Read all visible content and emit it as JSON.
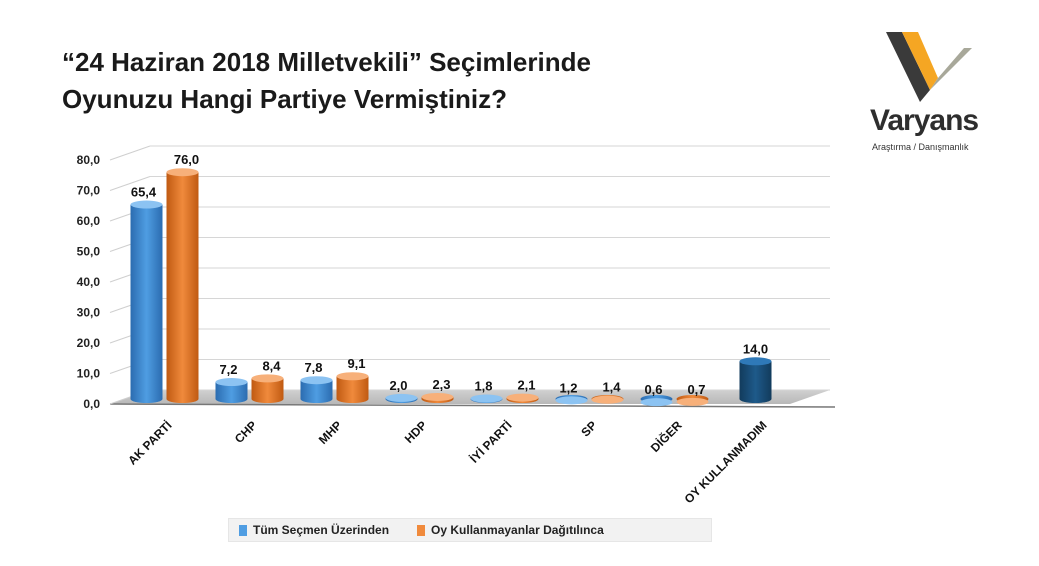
{
  "title": {
    "line1": "“24 Haziran 2018 Milletvekili” Seçimlerinde",
    "line2": "Oyunuzu Hangi Partiye Vermiştiniz?"
  },
  "logo": {
    "name": "Varyans",
    "tagline": "Araştırma / Danışmanlık"
  },
  "colors": {
    "series1": "#4f9de2",
    "series1_dark": "#2b6cb0",
    "series2": "#f08a3c",
    "series2_dark": "#c05a12",
    "single": "#1e5a8a",
    "floor": "#b8b8b8"
  },
  "chart_data": {
    "type": "bar",
    "title": "“24 Haziran 2018 Milletvekili” Seçimlerinde Oyunuzu Hangi Partiye Vermiştiniz?",
    "categories": [
      "AK PARTİ",
      "CHP",
      "MHP",
      "HDP",
      "İYİ PARTİ",
      "SP",
      "DİĞER",
      "OY KULLANMADIM"
    ],
    "series": [
      {
        "name": "Tüm Seçmen Üzerinden",
        "values": [
          65.4,
          7.2,
          7.8,
          2.0,
          1.8,
          1.2,
          0.6,
          14.0
        ]
      },
      {
        "name": "Oy Kullanmayanlar Dağıtılınca",
        "values": [
          76.0,
          8.4,
          9.1,
          2.3,
          2.1,
          1.4,
          0.7,
          null
        ]
      }
    ],
    "value_labels": [
      [
        "65,4",
        "7,2",
        "7,8",
        "2,0",
        "1,8",
        "1,2",
        "0,6",
        "14,0"
      ],
      [
        "76,0",
        "8,4",
        "9,1",
        "2,3",
        "2,1",
        "1,4",
        "0,7",
        ""
      ]
    ],
    "yticks": [
      "0,0",
      "10,0",
      "20,0",
      "30,0",
      "40,0",
      "50,0",
      "60,0",
      "70,0",
      "80,0"
    ],
    "ylim": [
      0,
      80
    ],
    "grid": true,
    "legend_position": "bottom"
  }
}
